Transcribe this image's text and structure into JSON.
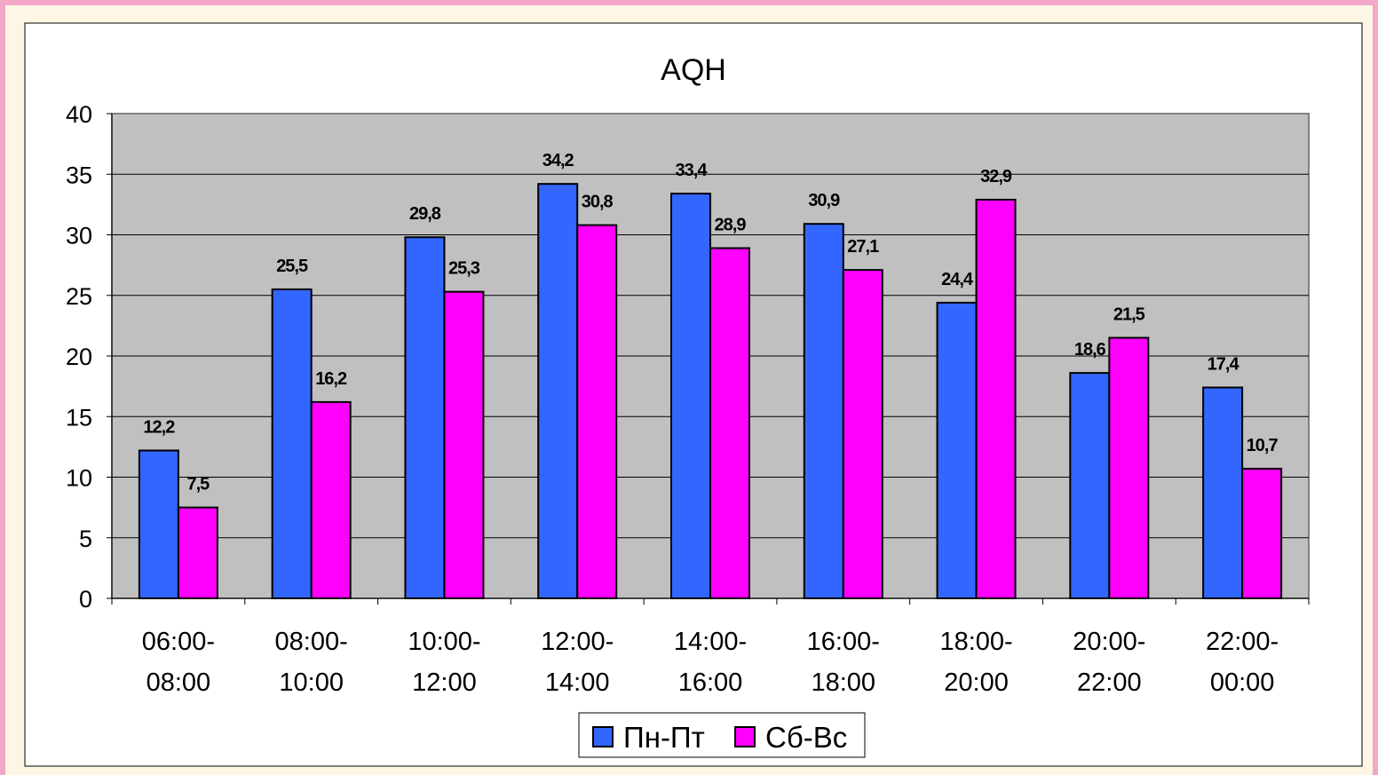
{
  "chart_data": {
    "type": "bar",
    "title": "AQH",
    "xlabel": "",
    "ylabel": "",
    "ylim": [
      0,
      40
    ],
    "yticks": [
      0,
      5,
      10,
      15,
      20,
      25,
      30,
      35,
      40
    ],
    "grid": true,
    "legend_position": "bottom",
    "categories": [
      [
        "06:00-",
        "08:00"
      ],
      [
        "08:00-",
        "10:00"
      ],
      [
        "10:00-",
        "12:00"
      ],
      [
        "12:00-",
        "14:00"
      ],
      [
        "14:00-",
        "16:00"
      ],
      [
        "16:00-",
        "18:00"
      ],
      [
        "18:00-",
        "20:00"
      ],
      [
        "20:00-",
        "22:00"
      ],
      [
        "22:00-",
        "00:00"
      ]
    ],
    "series": [
      {
        "name": "Пн-Пт",
        "color": "#3366ff",
        "values": [
          12.2,
          25.5,
          29.8,
          34.2,
          33.4,
          30.9,
          24.4,
          18.6,
          17.4
        ],
        "labels": [
          "12,2",
          "25,5",
          "29,8",
          "34,2",
          "33,4",
          "30,9",
          "24,4",
          "18,6",
          "17,4"
        ]
      },
      {
        "name": "Сб-Вс",
        "color": "#ff00ff",
        "values": [
          7.5,
          16.2,
          25.3,
          30.8,
          28.9,
          27.1,
          32.9,
          21.5,
          10.7
        ],
        "labels": [
          "7,5",
          "16,2",
          "25,3",
          "30,8",
          "28,9",
          "27,1",
          "32,9",
          "21,5",
          "10,7"
        ]
      }
    ]
  }
}
